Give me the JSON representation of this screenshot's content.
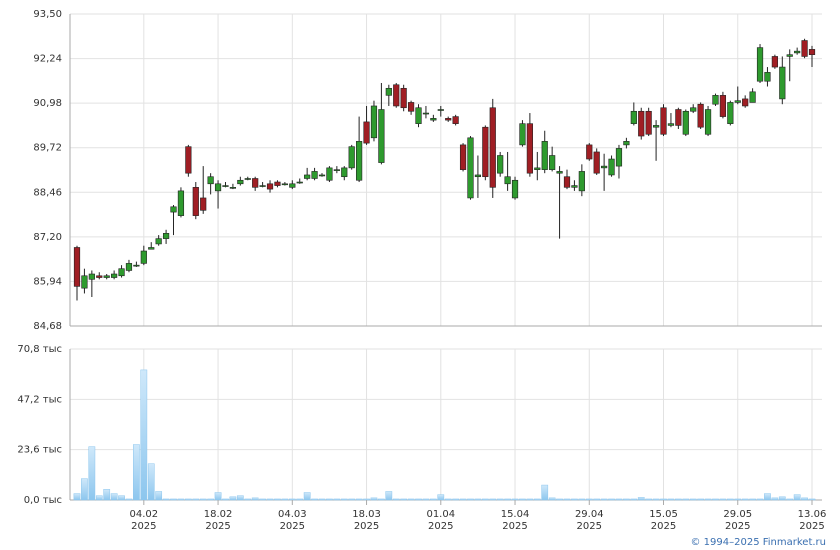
{
  "chart_data": [
    {
      "type": "candlestick",
      "categories": [
        null,
        null,
        null,
        null,
        null,
        null,
        null,
        null,
        null,
        {
          "day": "04.02",
          "year": "2025"
        },
        null,
        null,
        null,
        null,
        null,
        null,
        null,
        null,
        null,
        {
          "day": "18.02",
          "year": "2025"
        },
        null,
        null,
        null,
        null,
        null,
        null,
        null,
        null,
        null,
        {
          "day": "04.03",
          "year": "2025"
        },
        null,
        null,
        null,
        null,
        null,
        null,
        null,
        null,
        null,
        {
          "day": "18.03",
          "year": "2025"
        },
        null,
        null,
        null,
        null,
        null,
        null,
        null,
        null,
        null,
        {
          "day": "01.04",
          "year": "2025"
        },
        null,
        null,
        null,
        null,
        null,
        null,
        null,
        null,
        null,
        {
          "day": "15.04",
          "year": "2025"
        },
        null,
        null,
        null,
        null,
        null,
        null,
        null,
        null,
        null,
        {
          "day": "29.04",
          "year": "2025"
        },
        null,
        null,
        null,
        null,
        null,
        null,
        null,
        null,
        null,
        {
          "day": "15.05",
          "year": "2025"
        },
        null,
        null,
        null,
        null,
        null,
        null,
        null,
        null,
        null,
        {
          "day": "29.05",
          "year": "2025"
        },
        null,
        null,
        null,
        null,
        null,
        null,
        null,
        null,
        null,
        {
          "day": "13.06",
          "year": "2025"
        }
      ],
      "open": [
        86.9,
        85.75,
        86.0,
        86.1,
        86.05,
        86.05,
        86.1,
        86.25,
        86.4,
        86.45,
        86.85,
        87.0,
        87.15,
        87.9,
        87.8,
        89.75,
        88.6,
        88.3,
        88.7,
        88.5,
        88.65,
        88.6,
        88.7,
        88.85,
        88.85,
        88.65,
        88.7,
        88.75,
        88.7,
        88.6,
        88.75,
        88.85,
        88.85,
        88.95,
        88.8,
        89.1,
        88.9,
        89.15,
        88.8,
        90.45,
        90.0,
        89.3,
        91.2,
        91.5,
        91.4,
        91.0,
        90.4,
        90.7,
        90.5,
        90.8,
        90.55,
        90.6,
        89.8,
        88.3,
        88.9,
        90.3,
        90.85,
        89.0,
        88.7,
        88.3,
        89.8,
        90.4,
        89.1,
        89.1,
        89.1,
        89.0,
        88.9,
        88.6,
        88.5,
        89.8,
        89.6,
        89.15,
        88.95,
        89.2,
        89.8,
        90.4,
        90.75,
        90.75,
        90.3,
        90.85,
        90.35,
        90.8,
        90.1,
        90.75,
        90.95,
        90.1,
        90.95,
        91.2,
        90.4,
        91.0,
        91.1,
        91.0,
        91.6,
        91.6,
        92.3,
        91.1,
        92.3,
        92.4,
        92.75,
        92.5
      ],
      "high": [
        86.95,
        86.3,
        86.25,
        86.2,
        86.15,
        86.25,
        86.4,
        86.55,
        86.5,
        86.95,
        87.05,
        87.25,
        87.4,
        88.1,
        88.6,
        89.8,
        88.75,
        89.2,
        89.0,
        88.8,
        88.75,
        88.7,
        88.9,
        88.9,
        88.9,
        88.75,
        88.8,
        88.8,
        88.75,
        88.8,
        88.85,
        89.15,
        89.15,
        89.0,
        89.2,
        89.2,
        89.2,
        89.8,
        90.6,
        90.9,
        91.05,
        91.55,
        91.5,
        91.55,
        91.5,
        91.05,
        90.95,
        90.9,
        90.65,
        90.9,
        90.6,
        90.65,
        89.85,
        90.05,
        89.5,
        90.35,
        91.1,
        89.6,
        89.6,
        88.9,
        90.5,
        90.7,
        89.6,
        90.2,
        89.75,
        89.2,
        89.1,
        88.8,
        89.25,
        89.85,
        89.7,
        89.55,
        89.5,
        89.8,
        90.0,
        91.0,
        90.85,
        90.85,
        90.5,
        90.95,
        90.7,
        90.85,
        90.8,
        90.95,
        91.0,
        90.9,
        91.25,
        91.3,
        91.05,
        91.45,
        91.2,
        91.4,
        92.65,
        92.0,
        92.35,
        92.3,
        92.5,
        92.55,
        92.8,
        92.6
      ],
      "low": [
        85.4,
        85.6,
        85.5,
        86.0,
        86.0,
        86.0,
        86.05,
        86.2,
        86.35,
        86.4,
        86.85,
        86.95,
        87.0,
        87.25,
        87.75,
        88.9,
        87.7,
        87.85,
        88.4,
        88.0,
        88.6,
        88.55,
        88.65,
        88.8,
        88.5,
        88.6,
        88.45,
        88.6,
        88.65,
        88.55,
        88.7,
        88.8,
        88.8,
        88.9,
        88.75,
        89.0,
        88.8,
        89.1,
        88.75,
        89.8,
        89.9,
        89.25,
        90.9,
        90.85,
        90.75,
        90.65,
        90.3,
        90.55,
        90.45,
        90.6,
        90.45,
        90.35,
        89.05,
        88.25,
        88.3,
        88.8,
        88.3,
        88.9,
        88.5,
        88.25,
        89.75,
        88.9,
        88.8,
        89.0,
        89.05,
        87.15,
        88.55,
        88.5,
        88.35,
        89.35,
        88.95,
        88.5,
        88.9,
        88.85,
        89.7,
        90.35,
        89.95,
        90.05,
        89.35,
        90.05,
        90.3,
        90.25,
        90.05,
        90.7,
        90.25,
        90.05,
        90.9,
        90.55,
        90.35,
        90.95,
        90.85,
        91.0,
        91.55,
        91.45,
        91.95,
        90.95,
        91.6,
        92.35,
        92.25,
        92.0
      ],
      "close": [
        85.8,
        86.1,
        86.15,
        86.05,
        86.1,
        86.15,
        86.3,
        86.45,
        86.4,
        86.8,
        86.9,
        87.15,
        87.3,
        88.05,
        88.5,
        89.0,
        87.8,
        87.95,
        88.9,
        88.7,
        88.65,
        88.6,
        88.8,
        88.85,
        88.6,
        88.65,
        88.55,
        88.65,
        88.7,
        88.7,
        88.75,
        88.95,
        89.05,
        88.95,
        89.15,
        89.1,
        89.15,
        89.75,
        89.9,
        89.85,
        90.9,
        90.8,
        91.4,
        90.9,
        90.85,
        90.75,
        90.85,
        90.7,
        90.55,
        90.8,
        90.5,
        90.4,
        89.1,
        90.0,
        88.95,
        88.9,
        88.6,
        89.5,
        88.9,
        88.8,
        90.4,
        89.0,
        89.15,
        89.9,
        89.5,
        89.05,
        88.6,
        88.65,
        89.05,
        89.4,
        89.0,
        89.2,
        89.4,
        89.7,
        89.9,
        90.75,
        90.05,
        90.1,
        90.35,
        90.1,
        90.4,
        90.35,
        90.75,
        90.85,
        90.3,
        90.8,
        91.2,
        90.6,
        91.0,
        91.05,
        90.9,
        91.3,
        92.55,
        91.85,
        92.0,
        92.0,
        92.35,
        92.45,
        92.3,
        92.35
      ],
      "up_color": "#2e9a2e",
      "down_color": "#a01e24",
      "ylim": [
        84.68,
        93.5
      ],
      "yticks": [
        {
          "value": 84.68,
          "label": "84,68"
        },
        {
          "value": 85.94,
          "label": "85,94"
        },
        {
          "value": 87.2,
          "label": "87,20"
        },
        {
          "value": 88.46,
          "label": "88,46"
        },
        {
          "value": 89.72,
          "label": "89,72"
        },
        {
          "value": 90.98,
          "label": "90,98"
        },
        {
          "value": 92.24,
          "label": "92,24"
        },
        {
          "value": 93.5,
          "label": "93,50"
        }
      ],
      "grid": true
    },
    {
      "type": "bar",
      "values": [
        3,
        10,
        25,
        2,
        5,
        3,
        2,
        0.5,
        26,
        61,
        17,
        4,
        0.5,
        0.5,
        0.5,
        0.5,
        0.5,
        0.5,
        0.5,
        3.5,
        0.5,
        1.5,
        2,
        0.5,
        1,
        0.5,
        0.5,
        0.5,
        0.5,
        0.5,
        0.5,
        3.5,
        0.5,
        0.5,
        0.5,
        0.5,
        0.5,
        0.5,
        0.5,
        0.5,
        1,
        0.5,
        4,
        0.5,
        0.5,
        0.5,
        0.5,
        0.5,
        0.5,
        2.5,
        0.5,
        0.5,
        0.5,
        0.5,
        0.5,
        0.5,
        0.5,
        0.5,
        0.5,
        0.5,
        0.5,
        0.5,
        0.5,
        7,
        1,
        0.5,
        0.5,
        0.5,
        0.5,
        0.5,
        0.5,
        0.5,
        0.5,
        0.5,
        0.5,
        0.5,
        1.2,
        0.5,
        0.5,
        0.5,
        0.5,
        0.5,
        0.5,
        0.5,
        0.5,
        0.5,
        0.5,
        0.5,
        0.5,
        0.5,
        0.5,
        0.5,
        0.5,
        3,
        1,
        1.5,
        0.5,
        2.5,
        1,
        0.5
      ],
      "color": "#8cc6ee",
      "ylim": [
        0,
        70.8
      ],
      "yticks": [
        {
          "value": 0,
          "label": "0,0 тыс"
        },
        {
          "value": 23.6,
          "label": "23,6 тыс"
        },
        {
          "value": 47.2,
          "label": "47,2 тыс"
        },
        {
          "value": 70.8,
          "label": "70,8 тыс"
        }
      ],
      "grid": true
    }
  ],
  "footer": "© 1994–2025 Finmarket.ru"
}
